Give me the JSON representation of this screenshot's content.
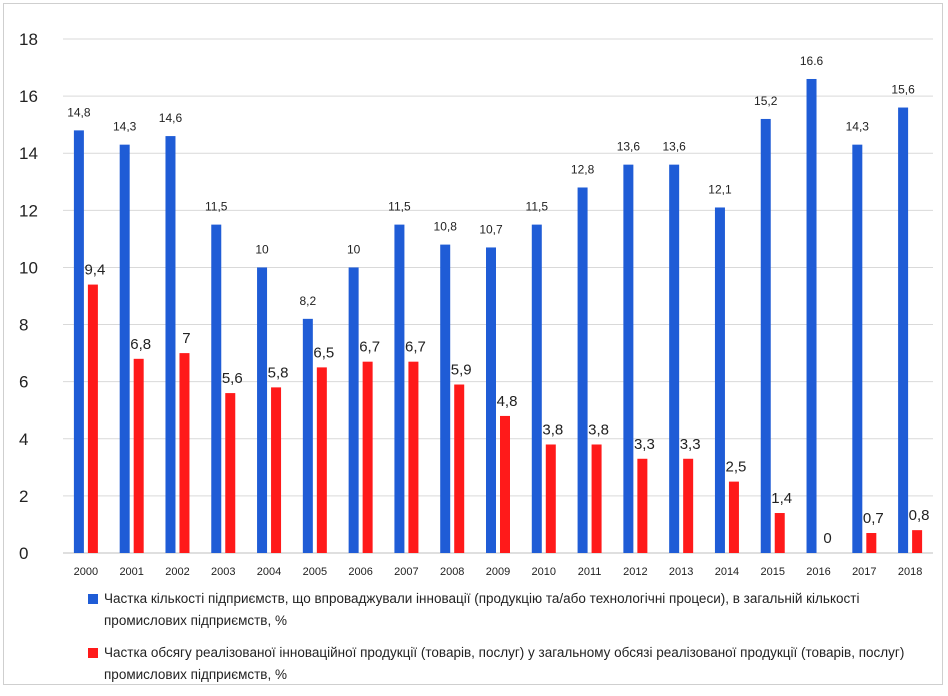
{
  "chart_data": {
    "type": "bar",
    "categories": [
      "2000",
      "2001",
      "2002",
      "2003",
      "2004",
      "2005",
      "2006",
      "2007",
      "2008",
      "2009",
      "2010",
      "2011",
      "2012",
      "2013",
      "2014",
      "2015",
      "2016",
      "2017",
      "2018"
    ],
    "series": [
      {
        "name": "Частка кількості підприємств, що впроваджували інновації (продукцію та/або технологічні процеси), в загальній кількості промислових підприємств, %",
        "color": "#1f5cd6",
        "values": [
          14.8,
          14.3,
          14.6,
          11.5,
          10,
          8.2,
          10,
          11.5,
          10.8,
          10.7,
          11.5,
          12.8,
          13.6,
          13.6,
          12.1,
          15.2,
          16.6,
          14.3,
          15.6
        ],
        "labels": [
          "14,8",
          "14,3",
          "14,6",
          "11,5",
          "10",
          "8,2",
          "10",
          "11,5",
          "10,8",
          "10,7",
          "11,5",
          "12,8",
          "13,6",
          "13,6",
          "12,1",
          "15,2",
          "16.6",
          "14,3",
          "15,6"
        ]
      },
      {
        "name": "Частка обсягу реалізованої інноваційної продукції (товарів, послуг) у загальному обсязі реалізованої продукції (товарів, послуг) промислових підприємств, %",
        "color": "#ff1a1a",
        "values": [
          9.4,
          6.8,
          7,
          5.6,
          5.8,
          6.5,
          6.7,
          6.7,
          5.9,
          4.8,
          3.8,
          3.8,
          3.3,
          3.3,
          2.5,
          1.4,
          0,
          0.7,
          0.8
        ],
        "labels": [
          "9,4",
          "6,8",
          "7",
          "5,6",
          "5,8",
          "6,5",
          "6,7",
          "6,7",
          "5,9",
          "4,8",
          "3,8",
          "3,8",
          "3,3",
          "3,3",
          "2,5",
          "1,4",
          "0",
          "0,7",
          "0,8"
        ]
      }
    ],
    "ylim": [
      0,
      18
    ],
    "yticks": [
      "0",
      "2",
      "4",
      "6",
      "8",
      "10",
      "12",
      "14",
      "16",
      "18"
    ],
    "grid": true,
    "legend_position": "bottom"
  }
}
